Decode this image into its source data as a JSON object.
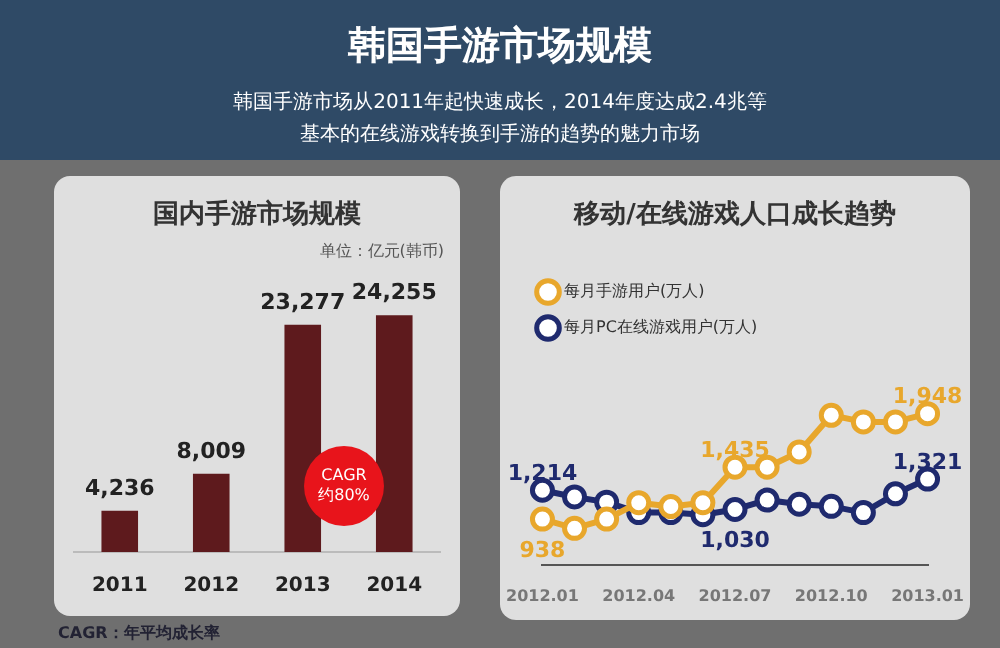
{
  "chart_data": [
    {
      "type": "other",
      "title": "韩国手游市场规模",
      "subtitle": "韩国手游市场从2011年起快速成长，2014年度达成2.4兆等基本的在线游戏转换到手游的趋势的魅力市场"
    },
    {
      "type": "bar",
      "title": "国内手游市场规模",
      "categories": [
        "2011",
        "2012",
        "2013",
        "2014"
      ],
      "values": [
        4236,
        8009,
        23277,
        24255
      ],
      "value_labels": [
        "4,236",
        "8,009",
        "23,277",
        "24,255"
      ],
      "color": "#5e1a1d",
      "annotations": [
        "单位：亿元(韩币)",
        "CAGR\n约80%",
        "CAGR：年平均成长率"
      ]
    },
    {
      "type": "line",
      "title": "移动/在线游戏人口成长趋势",
      "categories": [
        "2012.01",
        null,
        null,
        "2012.04",
        null,
        null,
        "2012.07",
        null,
        null,
        "2012.10",
        null,
        null,
        "2013.01"
      ],
      "legend": "top left",
      "marker": "circle",
      "series": [
        {
          "name": "每月手游用户(万人)",
          "color": "#e8a72c",
          "values": [
            938,
            849,
            938,
            1095,
            1058,
            1095,
            1435,
            1435,
            1581,
            1932,
            1869,
            1869,
            1948
          ],
          "value_labels": [
            "938",
            null,
            null,
            null,
            null,
            null,
            "1,435",
            null,
            null,
            null,
            null,
            null,
            "1,948"
          ]
        },
        {
          "name": "每月PC在线游戏用户(万人)",
          "color": "#1f2a6e",
          "values": [
            1214,
            1150,
            1100,
            1000,
            1000,
            980,
            1030,
            1120,
            1080,
            1060,
            1000,
            1180,
            1321
          ],
          "value_labels": [
            "1,214",
            null,
            null,
            null,
            null,
            null,
            "1,030",
            null,
            null,
            null,
            null,
            null,
            "1,321"
          ]
        }
      ]
    }
  ]
}
